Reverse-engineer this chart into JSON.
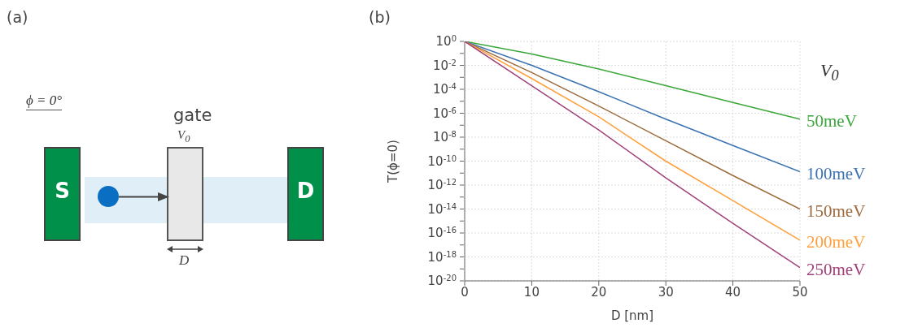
{
  "chart_data": [
    {
      "type": "other",
      "title": "(a)",
      "annotations": [
        "ϕ = 0°",
        "gate",
        "V$_{0}$",
        "S",
        "D",
        "D"
      ]
    },
    {
      "type": "line",
      "title": "(b)",
      "xlabel": "D [nm]",
      "ylabel": "T(ϕ=0)",
      "legend_title": "V$_{0}$",
      "legend": "right",
      "log": "y",
      "grid": true,
      "marker": "none",
      "line_style": "solid",
      "x": [
        0,
        10,
        20,
        30,
        40,
        50
      ],
      "xlim": [
        0,
        50
      ],
      "xticks": [
        0,
        10,
        20,
        30,
        40,
        50
      ],
      "ylim": [
        1e-20,
        1
      ],
      "yticks": [
        {
          "value": 1,
          "label": "10$^{0}$"
        },
        {
          "value": 0.1,
          "label": null
        },
        {
          "value": 0.01,
          "label": "10$^{-2}$"
        },
        {
          "value": 0.001,
          "label": null
        },
        {
          "value": 0.0001,
          "label": "10$^{-4}$"
        },
        {
          "value": 1e-05,
          "label": null
        },
        {
          "value": 1e-06,
          "label": "10$^{-6}$"
        },
        {
          "value": 1e-07,
          "label": null
        },
        {
          "value": 1e-08,
          "label": "10$^{-8}$"
        },
        {
          "value": 1e-09,
          "label": null
        },
        {
          "value": 1e-10,
          "label": "10$^{-10}$"
        },
        {
          "value": 1e-11,
          "label": null
        },
        {
          "value": 1e-12,
          "label": "10$^{-12}$"
        },
        {
          "value": 1e-13,
          "label": null
        },
        {
          "value": 1e-14,
          "label": "10$^{-14}$"
        },
        {
          "value": 1e-15,
          "label": null
        },
        {
          "value": 1e-16,
          "label": "10$^{-16}$"
        },
        {
          "value": 1e-17,
          "label": null
        },
        {
          "value": 1e-18,
          "label": "10$^{-18}$"
        },
        {
          "value": 1e-19,
          "label": null
        },
        {
          "value": 1e-20,
          "label": "10$^{-20}$"
        }
      ],
      "series": [
        {
          "name": "50meV",
          "color": "#3aa63a",
          "values": [
            1,
            0.0891,
            0.00501,
            0.0002,
            7.9e-06,
            3.2e-07
          ]
        },
        {
          "name": "100meV",
          "color": "#3b72b0",
          "values": [
            1,
            0.01,
            6.3e-05,
            3.2e-07,
            2e-09,
            1.3e-11
          ]
        },
        {
          "name": "150meV",
          "color": "#9c6a3c",
          "values": [
            1,
            0.0025,
            4e-06,
            5e-09,
            6.3e-12,
            1e-14
          ]
        },
        {
          "name": "200meV",
          "color": "#ff9f3a",
          "values": [
            1,
            0.00079,
            5e-07,
            1e-10,
            5e-14,
            2.5e-17
          ]
        },
        {
          "name": "250meV",
          "color": "#a0407a",
          "values": [
            1,
            0.0002,
            4e-08,
            4e-12,
            6.3e-16,
            1.3e-19
          ]
        }
      ]
    }
  ]
}
